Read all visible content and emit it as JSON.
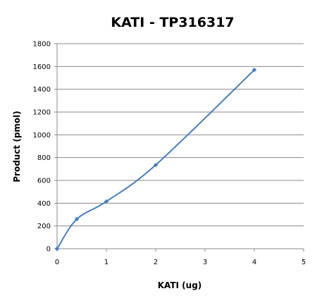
{
  "chart_data": {
    "type": "scatter",
    "title": "KATI - TP316317",
    "xlabel": "KATI (ug)",
    "ylabel": "Product (pmol)",
    "xlim": [
      0,
      5
    ],
    "ylim": [
      0,
      1800
    ],
    "x_ticks": [
      "0",
      "1",
      "2",
      "3",
      "4",
      "5"
    ],
    "y_ticks": [
      "0",
      "200",
      "400",
      "600",
      "800",
      "1000",
      "1200",
      "1400",
      "1600",
      "1800"
    ],
    "grid": "horizontal",
    "legend": "none",
    "line_style": "smoothed",
    "series": [
      {
        "x": [
          0,
          0.4,
          1,
          2,
          4
        ],
        "values": [
          0,
          260,
          415,
          735,
          1570
        ],
        "color": "#4a7ebb"
      }
    ]
  }
}
